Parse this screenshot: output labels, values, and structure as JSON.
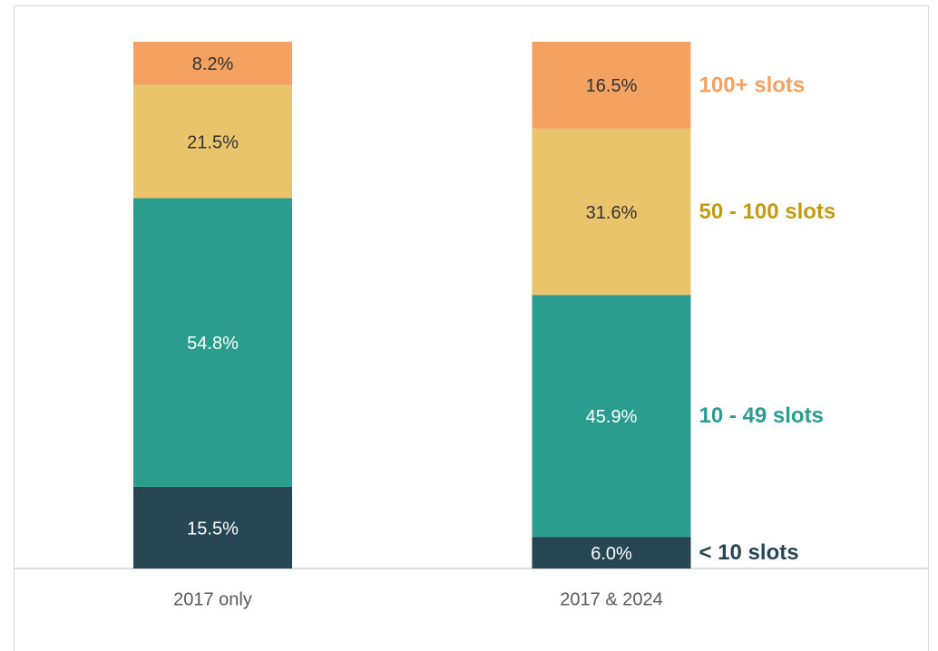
{
  "chart_data": {
    "type": "stacked_bar",
    "categories": [
      "2017 only",
      "2017 & 2024"
    ],
    "series": [
      {
        "name": "< 10 slots",
        "color": "#264653",
        "label_color": "#264653",
        "text_color": "#ffffff",
        "values": [
          15.5,
          6.0
        ],
        "value_labels": [
          "15.5%",
          "6.0%"
        ]
      },
      {
        "name": "10 - 49 slots",
        "color": "#2a9d8f",
        "label_color": "#2a9d8f",
        "text_color": "#ffffff",
        "values": [
          54.8,
          45.9
        ],
        "value_labels": [
          "54.8%",
          "45.9%"
        ]
      },
      {
        "name": "50 - 100 slots",
        "color": "#e9c46a",
        "label_color": "#c39a12",
        "text_color": "#333333",
        "values": [
          21.5,
          31.6
        ],
        "value_labels": [
          "21.5%",
          "31.6%"
        ]
      },
      {
        "name": "100+ slots",
        "color": "#f4a261",
        "label_color": "#f4a261",
        "text_color": "#333333",
        "values": [
          8.2,
          16.5
        ],
        "value_labels": [
          "8.2%",
          "16.5%"
        ]
      }
    ]
  }
}
